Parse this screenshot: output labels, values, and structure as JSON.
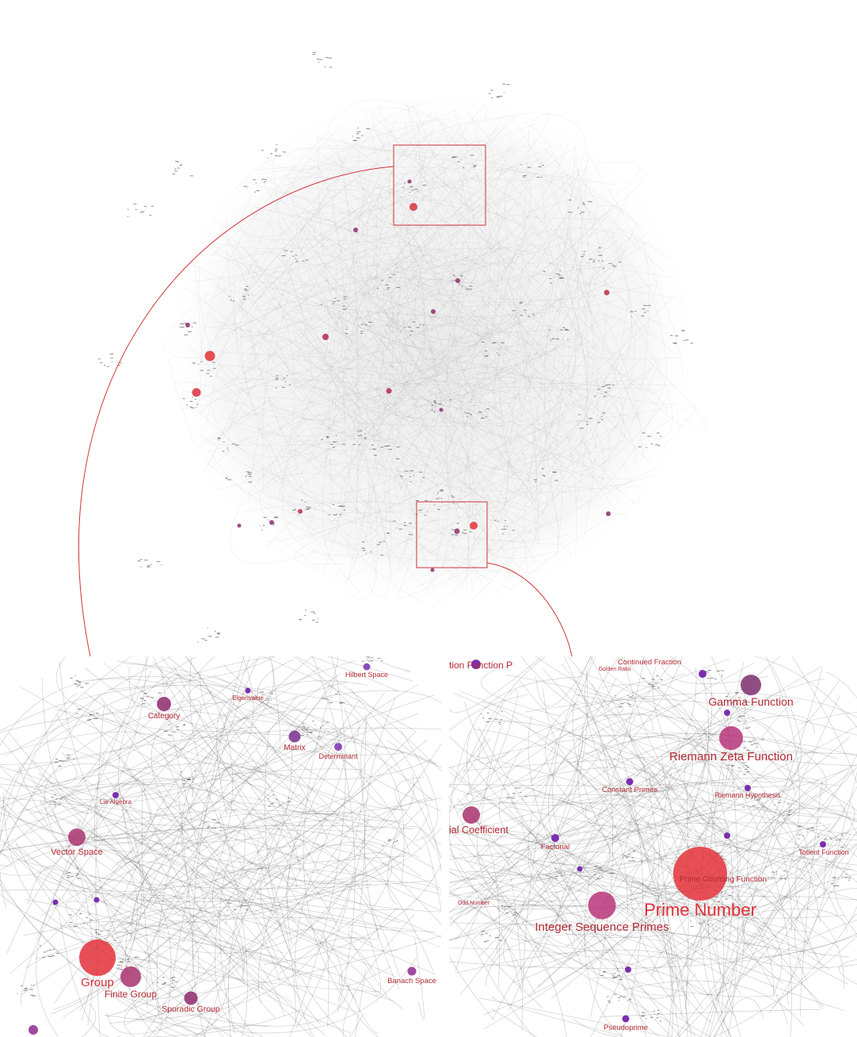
{
  "colors": {
    "node_small": "#7a2fb0",
    "node_mid": "#a8326f",
    "node_large": "#e4313a",
    "label": "#b32b34",
    "edge": "#7a7a7a",
    "frame": "#d0343b"
  },
  "zoom_left": {
    "nodes": [
      {
        "id": "group",
        "label": "Group",
        "size": "large"
      },
      {
        "id": "finite-group",
        "label": "Finite Group",
        "size": "mid"
      },
      {
        "id": "sporadic-group",
        "label": "Sporadic Group",
        "size": "mid"
      },
      {
        "id": "vector-space",
        "label": "Vector Space",
        "size": "mid"
      },
      {
        "id": "category",
        "label": "Category",
        "size": "mid"
      },
      {
        "id": "matrix",
        "label": "Matrix",
        "size": "mid"
      },
      {
        "id": "determinant",
        "label": "Determinant",
        "size": "small"
      },
      {
        "id": "hilbert-space",
        "label": "Hilbert Space",
        "size": "small"
      },
      {
        "id": "banach-space",
        "label": "Banach Space",
        "size": "small"
      },
      {
        "id": "eigenvalue",
        "label": "Eigenvalue",
        "size": "small"
      },
      {
        "id": "lie-algebra",
        "label": "Lie Algebra",
        "size": "small"
      }
    ]
  },
  "zoom_right": {
    "nodes": [
      {
        "id": "prime-number",
        "label": "Prime Number",
        "size": "large"
      },
      {
        "id": "integer-sequence-primes",
        "label": "Integer Sequence Primes",
        "size": "mid"
      },
      {
        "id": "riemann-zeta-function",
        "label": "Riemann Zeta Function",
        "size": "mid"
      },
      {
        "id": "gamma-function",
        "label": "Gamma Function",
        "size": "mid"
      },
      {
        "id": "binomial-coefficient",
        "label": "ial Coefficient",
        "size": "mid"
      },
      {
        "id": "constant-primes",
        "label": "Constant Primes",
        "size": "small"
      },
      {
        "id": "riemann-hypothesis",
        "label": "Riemann Hypothesis",
        "size": "small"
      },
      {
        "id": "factorial",
        "label": "Factorial",
        "size": "small"
      },
      {
        "id": "prime-counting-function",
        "label": "Prime Counting Function",
        "size": "small"
      },
      {
        "id": "pseudoprime",
        "label": "Pseudoprime",
        "size": "small"
      },
      {
        "id": "continued-fraction",
        "label": "Continued Fraction",
        "size": "small"
      },
      {
        "id": "totient-function",
        "label": "Totient Function",
        "size": "small"
      },
      {
        "id": "odd-number",
        "label": "Odd Number",
        "size": "small"
      },
      {
        "id": "golden-ratio",
        "label": "Golden Ratio",
        "size": "small"
      },
      {
        "id": "function-p",
        "label": "tion Function P",
        "size": "small"
      }
    ]
  }
}
